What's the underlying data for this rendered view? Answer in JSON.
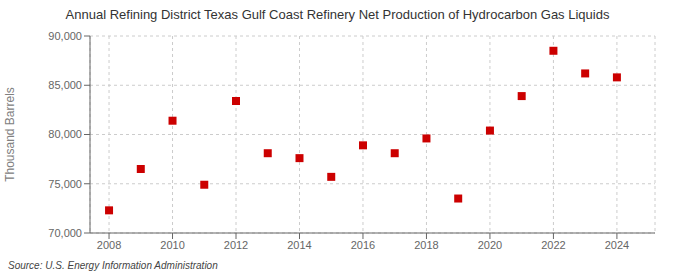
{
  "chart_data": {
    "type": "scatter",
    "title": "Annual Refining District Texas Gulf Coast Refinery Net Production of Hydrocarbon Gas Liquids",
    "ylabel": "Thousand Barrels",
    "source": "Source: U.S. Energy Information Administration",
    "x": [
      2008,
      2009,
      2010,
      2011,
      2012,
      2013,
      2014,
      2015,
      2016,
      2017,
      2018,
      2019,
      2020,
      2021,
      2022,
      2023,
      2024
    ],
    "values": [
      72300,
      76500,
      81400,
      74900,
      83400,
      78100,
      77600,
      75700,
      78900,
      78100,
      79600,
      73500,
      80400,
      83900,
      88500,
      86200,
      85800
    ],
    "color": "#cc0000",
    "marker": "square",
    "xlim": [
      2007.4,
      2025.2
    ],
    "xticks": [
      2008,
      2010,
      2012,
      2014,
      2016,
      2018,
      2020,
      2022,
      2024
    ],
    "ylim": [
      70000,
      90000
    ],
    "yticks": [
      {
        "value": 70000,
        "label": "70,000"
      },
      {
        "value": 75000,
        "label": "75,000"
      },
      {
        "value": 80000,
        "label": "80,000"
      },
      {
        "value": 85000,
        "label": "85,000"
      },
      {
        "value": 90000,
        "label": "90,000"
      }
    ],
    "grid": true
  }
}
